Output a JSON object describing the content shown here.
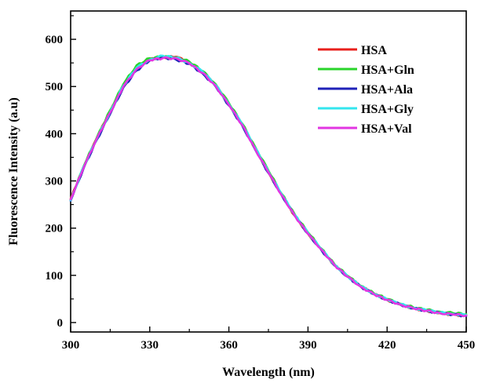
{
  "chart_data": {
    "type": "line",
    "title": "",
    "xlabel": "Wavelength (nm)",
    "ylabel": "Fluorescence Intensity (a.u)",
    "xlim": [
      300,
      450
    ],
    "ylim": [
      -20,
      660
    ],
    "xticks": [
      300,
      330,
      360,
      390,
      420,
      450
    ],
    "yticks": [
      0,
      100,
      200,
      300,
      400,
      500,
      600
    ],
    "grid": false,
    "legend_position": "top-right",
    "x": [
      300,
      305,
      310,
      315,
      320,
      325,
      330,
      335,
      340,
      345,
      350,
      355,
      360,
      365,
      370,
      375,
      380,
      385,
      390,
      395,
      400,
      405,
      410,
      415,
      420,
      425,
      430,
      435,
      440,
      445,
      450
    ],
    "series": [
      {
        "name": "HSA",
        "color": "#e8201c",
        "values": [
          262,
          330,
          392,
          448,
          500,
          538,
          558,
          562,
          563,
          551,
          530,
          503,
          462,
          420,
          368,
          318,
          270,
          226,
          188,
          155,
          122,
          98,
          77,
          61,
          48,
          38,
          30,
          25,
          20,
          17,
          15
        ]
      },
      {
        "name": "HSA+Gln",
        "color": "#29d42a",
        "values": [
          260,
          332,
          393,
          450,
          505,
          545,
          560,
          563,
          562,
          553,
          533,
          505,
          465,
          422,
          372,
          322,
          273,
          229,
          191,
          157,
          124,
          99,
          78,
          62,
          50,
          40,
          32,
          27,
          23,
          20,
          18
        ]
      },
      {
        "name": "HSA+Ala",
        "color": "#1f22b8",
        "values": [
          258,
          328,
          388,
          442,
          498,
          534,
          555,
          562,
          557,
          548,
          528,
          500,
          460,
          418,
          366,
          317,
          270,
          226,
          188,
          154,
          121,
          97,
          76,
          60,
          48,
          38,
          30,
          25,
          20,
          17,
          14
        ]
      },
      {
        "name": "HSA+Gly",
        "color": "#33e6ee",
        "values": [
          259,
          331,
          390,
          446,
          502,
          540,
          557,
          565,
          561,
          550,
          532,
          503,
          463,
          421,
          370,
          320,
          272,
          228,
          190,
          156,
          123,
          98,
          77,
          61,
          49,
          39,
          31,
          26,
          21,
          18,
          16
        ]
      },
      {
        "name": "HSA+Val",
        "color": "#e236e2",
        "values": [
          261,
          329,
          391,
          445,
          500,
          537,
          556,
          560,
          560,
          549,
          529,
          501,
          461,
          419,
          367,
          318,
          270,
          226,
          188,
          155,
          122,
          97,
          76,
          60,
          48,
          38,
          30,
          25,
          20,
          17,
          15
        ]
      }
    ]
  }
}
